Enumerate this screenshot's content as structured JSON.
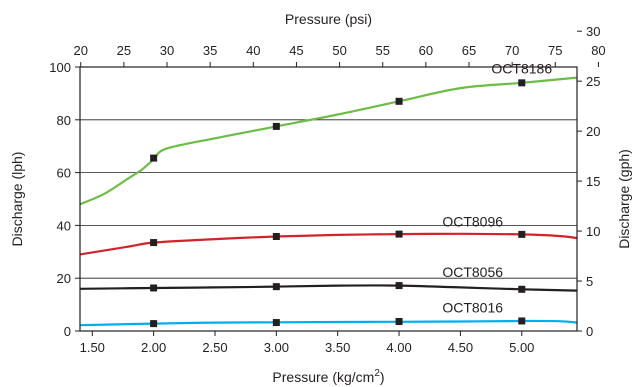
{
  "chart_data": {
    "type": "line",
    "title": "",
    "xlabel": "Pressure (kg/cm",
    "xlabel_sup": "2",
    "xlabel_close": ")",
    "x2label": "Pressure (psi)",
    "ylabel": "Discharge (lph)",
    "y2label": "Discharge (gph)",
    "xlim": [
      1.4,
      5.45
    ],
    "ylim": [
      0,
      100
    ],
    "x_ticks": [
      "1.50",
      "2.00",
      "2.50",
      "3.00",
      "3.50",
      "4.00",
      "4.50",
      "5.00"
    ],
    "y_ticks": [
      "0",
      "20",
      "40",
      "60",
      "80",
      "100"
    ],
    "x2_ticks": [
      "20",
      "25",
      "30",
      "35",
      "40",
      "45",
      "50",
      "55",
      "60",
      "65",
      "70",
      "75",
      "80"
    ],
    "y2_ticks": [
      "0",
      "5",
      "10",
      "15",
      "20",
      "25",
      "30"
    ],
    "grid": "horizontal",
    "series": [
      {
        "name": "OCT8186",
        "color": "#6cbd45",
        "x": [
          1.4,
          1.6,
          1.8,
          1.9,
          2.0,
          2.1,
          2.5,
          3.0,
          3.5,
          4.0,
          4.5,
          5.0,
          5.45
        ],
        "y": [
          48,
          52,
          58,
          61,
          65,
          69,
          73,
          77.5,
          82,
          87,
          92,
          94,
          96
        ],
        "markers": [
          [
            2.0,
            65.5
          ],
          [
            3.0,
            77.5
          ],
          [
            4.0,
            87
          ],
          [
            5.0,
            94
          ]
        ]
      },
      {
        "name": "OCT8096",
        "color": "#d2232a",
        "x": [
          1.4,
          1.8,
          2.0,
          2.5,
          3.0,
          3.5,
          4.0,
          4.5,
          5.0,
          5.3,
          5.45
        ],
        "y": [
          29,
          32,
          33.5,
          34.8,
          35.8,
          36.4,
          36.7,
          36.8,
          36.6,
          36,
          35.2
        ],
        "markers": [
          [
            2.0,
            33.5
          ],
          [
            3.0,
            35.8
          ],
          [
            4.0,
            36.7
          ],
          [
            5.0,
            36.6
          ]
        ]
      },
      {
        "name": "OCT8056",
        "color": "#231f20",
        "x": [
          1.4,
          2.0,
          2.5,
          3.0,
          3.5,
          4.0,
          4.5,
          5.0,
          5.45
        ],
        "y": [
          16,
          16.3,
          16.5,
          16.8,
          17.2,
          17.2,
          16.5,
          15.8,
          15.3
        ],
        "markers": [
          [
            2.0,
            16.3
          ],
          [
            3.0,
            16.8
          ],
          [
            4.0,
            17.2
          ],
          [
            5.0,
            15.8
          ]
        ]
      },
      {
        "name": "OCT8016",
        "color": "#00aeef",
        "x": [
          1.4,
          1.8,
          2.0,
          2.5,
          3.0,
          3.5,
          4.0,
          4.5,
          5.0,
          5.3,
          5.45
        ],
        "y": [
          2.2,
          2.6,
          2.8,
          3.2,
          3.3,
          3.4,
          3.5,
          3.6,
          3.8,
          3.7,
          3.2
        ],
        "markers": [
          [
            2.0,
            2.8
          ],
          [
            3.0,
            3.2
          ],
          [
            4.0,
            3.6
          ],
          [
            5.0,
            3.8
          ]
        ]
      }
    ]
  }
}
